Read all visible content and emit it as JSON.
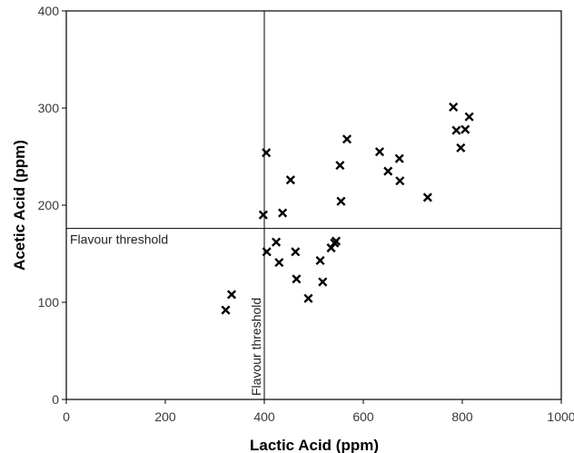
{
  "chart_data": {
    "type": "scatter",
    "xlabel": "Lactic Acid (ppm)",
    "ylabel": "Acetic Acid (ppm)",
    "xlim": [
      0,
      1000
    ],
    "ylim": [
      0,
      400
    ],
    "xticks": [
      0,
      200,
      400,
      600,
      800,
      1000
    ],
    "yticks": [
      0,
      100,
      200,
      300,
      400
    ],
    "grid": false,
    "marker": "x",
    "points": [
      {
        "x": 322,
        "y": 92
      },
      {
        "x": 334,
        "y": 108
      },
      {
        "x": 398,
        "y": 190
      },
      {
        "x": 404,
        "y": 254
      },
      {
        "x": 405,
        "y": 152
      },
      {
        "x": 424,
        "y": 162
      },
      {
        "x": 430,
        "y": 141
      },
      {
        "x": 437,
        "y": 192
      },
      {
        "x": 453,
        "y": 226
      },
      {
        "x": 463,
        "y": 152
      },
      {
        "x": 465,
        "y": 124
      },
      {
        "x": 489,
        "y": 104
      },
      {
        "x": 513,
        "y": 143
      },
      {
        "x": 518,
        "y": 121
      },
      {
        "x": 535,
        "y": 156
      },
      {
        "x": 542,
        "y": 161
      },
      {
        "x": 545,
        "y": 163
      },
      {
        "x": 553,
        "y": 241
      },
      {
        "x": 555,
        "y": 204
      },
      {
        "x": 567,
        "y": 268
      },
      {
        "x": 633,
        "y": 255
      },
      {
        "x": 650,
        "y": 235
      },
      {
        "x": 673,
        "y": 248
      },
      {
        "x": 674,
        "y": 225
      },
      {
        "x": 730,
        "y": 208
      },
      {
        "x": 782,
        "y": 301
      },
      {
        "x": 788,
        "y": 277
      },
      {
        "x": 797,
        "y": 259
      },
      {
        "x": 806,
        "y": 278
      },
      {
        "x": 814,
        "y": 291
      }
    ],
    "reference_lines": [
      {
        "orientation": "horizontal",
        "value": 176,
        "label": "Flavour threshold"
      },
      {
        "orientation": "vertical",
        "value": 400,
        "label": "Flavour threshold"
      }
    ]
  },
  "colors": {
    "marker": "#000000",
    "axis": "#000000",
    "background": "#ffffff"
  }
}
